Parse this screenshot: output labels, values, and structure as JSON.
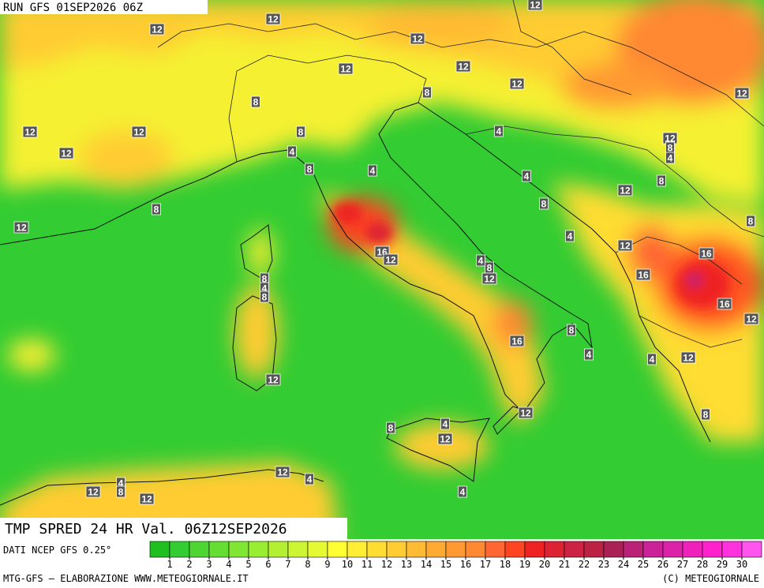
{
  "header": {
    "run": "RUN GFS 01SEP2026 06Z"
  },
  "map_title": "TMP SPRED 24 HR Val. 06Z12SEP2026",
  "source": "DATI NCEP GFS 0.25°",
  "footer": {
    "left": "MTG-GFS — ELABORAZIONE WWW.METEOGIORNALE.IT",
    "right": "(C) METEOGIORNALE"
  },
  "contour_labels": [
    12,
    12,
    12,
    12,
    12,
    12,
    12,
    8,
    8,
    12,
    12,
    12,
    8,
    4,
    12,
    8,
    12,
    4,
    4,
    8,
    4,
    4,
    8,
    12,
    8,
    8,
    8,
    12,
    4,
    12,
    16,
    12,
    4,
    8,
    16,
    8,
    12,
    16,
    4,
    8,
    16,
    12,
    8,
    16,
    4,
    4,
    12,
    12,
    12,
    8,
    4,
    8,
    12,
    12,
    4,
    4,
    8,
    12,
    12,
    4
  ],
  "colorbar": {
    "ticks": [
      1,
      2,
      3,
      4,
      5,
      6,
      7,
      8,
      9,
      10,
      11,
      12,
      13,
      14,
      15,
      16,
      17,
      18,
      19,
      20,
      21,
      22,
      23,
      24,
      25,
      26,
      27,
      28,
      29,
      30
    ],
    "colors": [
      "#1fbf1f",
      "#33cc33",
      "#4dd633",
      "#66dd33",
      "#80e633",
      "#99ee33",
      "#b3f033",
      "#ccf533",
      "#e6fa33",
      "#ffff33",
      "#ffee33",
      "#ffdd33",
      "#ffcc33",
      "#ffbb33",
      "#ffaa33",
      "#ff9933",
      "#ff8833",
      "#ff6633",
      "#ff4422",
      "#ee2222",
      "#dd2233",
      "#cc2244",
      "#bb2244",
      "#aa2255",
      "#bb2277",
      "#cc2299",
      "#dd22aa",
      "#ee22bb",
      "#ff22cc",
      "#ff33dd",
      "#ff55ee"
    ]
  }
}
